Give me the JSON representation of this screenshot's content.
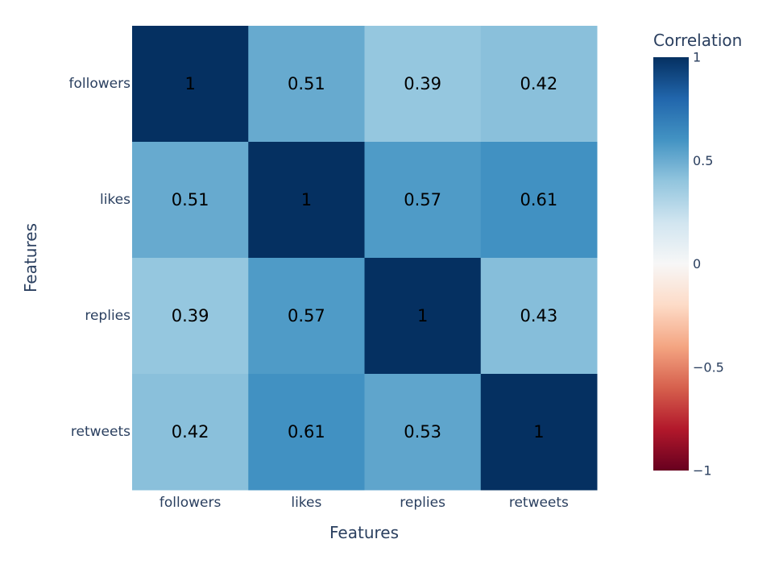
{
  "chart_data": {
    "type": "heatmap",
    "x_categories": [
      "followers",
      "likes",
      "replies",
      "retweets"
    ],
    "y_categories": [
      "followers",
      "likes",
      "replies",
      "retweets"
    ],
    "z": [
      [
        1,
        0.51,
        0.39,
        0.42
      ],
      [
        0.51,
        1,
        0.57,
        0.61
      ],
      [
        0.39,
        0.57,
        1,
        0.43
      ],
      [
        0.42,
        0.61,
        0.53,
        1
      ]
    ],
    "text": [
      [
        "1",
        "0.51",
        "0.39",
        "0.42"
      ],
      [
        "0.51",
        "1",
        "0.57",
        "0.61"
      ],
      [
        "0.39",
        "0.57",
        "1",
        "0.43"
      ],
      [
        "0.42",
        "0.61",
        "0.53",
        "1"
      ]
    ],
    "xlabel": "Features",
    "ylabel": "Features",
    "colorbar": {
      "title": "Correlation",
      "range": [
        -1,
        1
      ],
      "ticks": [
        1,
        0.5,
        0,
        -0.5,
        -1
      ],
      "tick_labels": [
        "1",
        "0.5",
        "0",
        "−0.5",
        "−1"
      ],
      "colorscale": [
        [
          0,
          "#67001f"
        ],
        [
          0.1,
          "#b2182b"
        ],
        [
          0.2,
          "#d6604d"
        ],
        [
          0.3,
          "#f4a582"
        ],
        [
          0.4,
          "#fddbc7"
        ],
        [
          0.5,
          "#f7f7f7"
        ],
        [
          0.6,
          "#d1e5f0"
        ],
        [
          0.7,
          "#92c5de"
        ],
        [
          0.8,
          "#4393c3"
        ],
        [
          0.9,
          "#2166ac"
        ],
        [
          1,
          "#053061"
        ]
      ]
    }
  }
}
